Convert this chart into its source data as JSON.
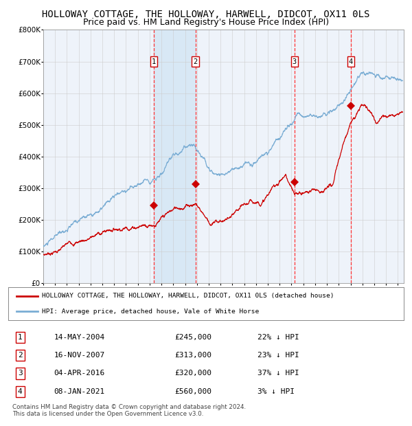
{
  "title": "HOLLOWAY COTTAGE, THE HOLLOWAY, HARWELL, DIDCOT, OX11 0LS",
  "subtitle": "Price paid vs. HM Land Registry's House Price Index (HPI)",
  "legend_red": "HOLLOWAY COTTAGE, THE HOLLOWAY, HARWELL, DIDCOT, OX11 0LS (detached house)",
  "legend_blue": "HPI: Average price, detached house, Vale of White Horse",
  "footer": "Contains HM Land Registry data © Crown copyright and database right 2024.\nThis data is licensed under the Open Government Licence v3.0.",
  "transactions": [
    {
      "num": 1,
      "date": "14-MAY-2004",
      "price": 245000,
      "hpi_pct": "22% ↓ HPI",
      "date_x": 2004.37
    },
    {
      "num": 2,
      "date": "16-NOV-2007",
      "price": 313000,
      "hpi_pct": "23% ↓ HPI",
      "date_x": 2007.88
    },
    {
      "num": 3,
      "date": "04-APR-2016",
      "price": 320000,
      "hpi_pct": "37% ↓ HPI",
      "date_x": 2016.26
    },
    {
      "num": 4,
      "date": "08-JAN-2021",
      "price": 560000,
      "hpi_pct": "3% ↓ HPI",
      "date_x": 2021.02
    }
  ],
  "marker_values": [
    245000,
    313000,
    320000,
    560000
  ],
  "ylim": [
    0,
    800000
  ],
  "xlim_start": 1995.0,
  "xlim_end": 2025.5,
  "background_color": "#ffffff",
  "chart_bg": "#eef3fa",
  "grid_color": "#cccccc",
  "red_line_color": "#cc0000",
  "blue_line_color": "#7aadd4",
  "dashed_color": "#ff3333",
  "shade_color": "#d8e8f5",
  "title_fontsize": 10,
  "subtitle_fontsize": 9
}
